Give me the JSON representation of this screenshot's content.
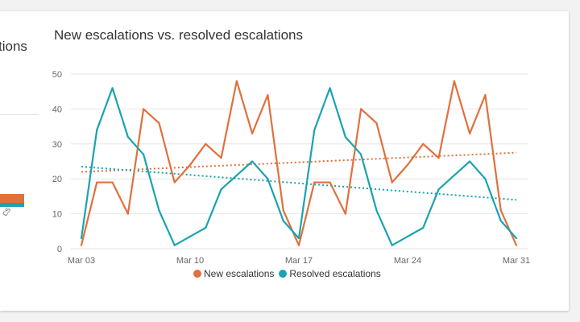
{
  "left_panel": {
    "title_fragment": "tions",
    "tick_fragment": "cs",
    "colors": {
      "orange": "#e0703c",
      "teal": "#1aa3b0"
    }
  },
  "chart_data": {
    "type": "line",
    "title": "New escalations vs. resolved escalations",
    "xlabel": "",
    "ylabel": "",
    "ylim": [
      0,
      50
    ],
    "yticks": [
      0,
      10,
      20,
      30,
      40,
      50
    ],
    "x_start": "Mar 03",
    "x_end": "Mar 31",
    "x_tick_labels": [
      "Mar 03",
      "Mar 10",
      "Mar 17",
      "Mar 24",
      "Mar 31"
    ],
    "x_tick_days": [
      3,
      10,
      17,
      24,
      31
    ],
    "x": [
      3,
      4,
      5,
      6,
      7,
      8,
      9,
      10,
      11,
      12,
      13,
      14,
      15,
      16,
      17,
      18,
      19,
      20,
      21,
      22,
      23,
      24,
      25,
      26,
      27,
      28,
      29,
      30,
      31
    ],
    "series": [
      {
        "name": "New escalations",
        "color": "#e0703c",
        "values": [
          1,
          19,
          19,
          10,
          40,
          36,
          19,
          24,
          30,
          26,
          48,
          33,
          44,
          11,
          1,
          19,
          19,
          10,
          40,
          36,
          19,
          24,
          30,
          26,
          48,
          33,
          44,
          11,
          1
        ],
        "trendline": [
          22,
          27.5
        ]
      },
      {
        "name": "Resolved escalations",
        "color": "#1aa3b0",
        "values": [
          3,
          34,
          46,
          32,
          27,
          11,
          1,
          3.5,
          6,
          17,
          21,
          25,
          20,
          8,
          3,
          34,
          46,
          32,
          27,
          11,
          1,
          3.5,
          6,
          17,
          21,
          25,
          20,
          8,
          3
        ],
        "trendline": [
          23.5,
          14
        ]
      }
    ],
    "grid": true,
    "legend_position": "bottom-center"
  }
}
